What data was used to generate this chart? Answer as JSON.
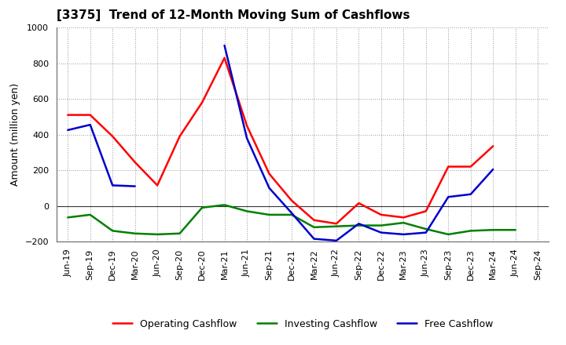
{
  "title": "[3375]  Trend of 12-Month Moving Sum of Cashflows",
  "ylabel": "Amount (million yen)",
  "ylim": [
    -200,
    1000
  ],
  "yticks": [
    -200,
    0,
    200,
    400,
    600,
    800,
    1000
  ],
  "x_labels": [
    "Jun-19",
    "Sep-19",
    "Dec-19",
    "Mar-20",
    "Jun-20",
    "Sep-20",
    "Dec-20",
    "Mar-21",
    "Jun-21",
    "Sep-21",
    "Dec-21",
    "Mar-22",
    "Jun-22",
    "Sep-22",
    "Dec-22",
    "Mar-23",
    "Jun-23",
    "Sep-23",
    "Dec-23",
    "Mar-24",
    "Jun-24",
    "Sep-24"
  ],
  "operating": [
    510,
    510,
    390,
    245,
    115,
    390,
    580,
    830,
    450,
    180,
    30,
    -80,
    -100,
    15,
    -50,
    -65,
    -30,
    220,
    220,
    335,
    null,
    null
  ],
  "investing": [
    -65,
    -50,
    -140,
    -155,
    -160,
    -155,
    -10,
    5,
    -30,
    -50,
    -50,
    -120,
    -115,
    -110,
    -110,
    -95,
    -130,
    -160,
    -140,
    -135,
    -135,
    null
  ],
  "free": [
    425,
    455,
    115,
    110,
    null,
    null,
    null,
    900,
    380,
    100,
    -40,
    -185,
    -195,
    -100,
    -150,
    -160,
    -150,
    50,
    65,
    205,
    null,
    null
  ],
  "operating_color": "#ff0000",
  "investing_color": "#008000",
  "free_color": "#0000cc",
  "line_width": 1.8,
  "bg_color": "#ffffff",
  "plot_bg_color": "#ffffff",
  "grid_color": "#999999",
  "title_fontsize": 11,
  "label_fontsize": 9,
  "tick_fontsize": 8,
  "legend_fontsize": 9
}
